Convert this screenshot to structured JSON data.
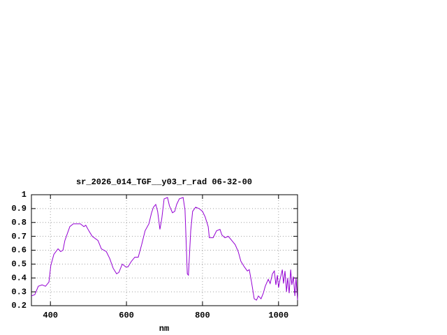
{
  "chart_data": {
    "type": "line",
    "title": "sr_2026_014_TGF__y03_r_rad 06-32-00",
    "x_label": "nm",
    "x": [
      350,
      359,
      368,
      378,
      387,
      396,
      401,
      409,
      420,
      427,
      433,
      438,
      451,
      460,
      479,
      488,
      493,
      501,
      510,
      525,
      534,
      547,
      556,
      565,
      574,
      580,
      589,
      598,
      604,
      613,
      622,
      631,
      640,
      649,
      659,
      666,
      671,
      677,
      682,
      688,
      693,
      699,
      708,
      713,
      721,
      727,
      732,
      739,
      749,
      754,
      760,
      763,
      769,
      774,
      782,
      791,
      800,
      807,
      815,
      818,
      828,
      837,
      846,
      851,
      859,
      868,
      877,
      886,
      894,
      901,
      910,
      918,
      923,
      929,
      936,
      942,
      947,
      954,
      960,
      965,
      973,
      978,
      984,
      989,
      993,
      997,
      1000,
      1004,
      1010,
      1013,
      1017,
      1021,
      1024,
      1028,
      1032,
      1035,
      1039,
      1043,
      1046,
      1050
    ],
    "series": [
      {
        "name": "sr_2026_014_TGF__y03_r_rad 06-32-00",
        "color": "#9400d3",
        "values": [
          0.27,
          0.28,
          0.34,
          0.35,
          0.34,
          0.37,
          0.49,
          0.57,
          0.61,
          0.59,
          0.6,
          0.67,
          0.77,
          0.79,
          0.79,
          0.77,
          0.78,
          0.74,
          0.7,
          0.67,
          0.61,
          0.59,
          0.54,
          0.47,
          0.43,
          0.44,
          0.5,
          0.48,
          0.48,
          0.52,
          0.55,
          0.55,
          0.64,
          0.74,
          0.79,
          0.87,
          0.91,
          0.93,
          0.88,
          0.75,
          0.83,
          0.97,
          0.98,
          0.92,
          0.87,
          0.88,
          0.93,
          0.97,
          0.98,
          0.89,
          0.43,
          0.42,
          0.74,
          0.88,
          0.91,
          0.9,
          0.88,
          0.84,
          0.77,
          0.69,
          0.69,
          0.74,
          0.75,
          0.71,
          0.69,
          0.7,
          0.67,
          0.64,
          0.59,
          0.52,
          0.48,
          0.45,
          0.46,
          0.37,
          0.25,
          0.24,
          0.27,
          0.25,
          0.29,
          0.34,
          0.39,
          0.36,
          0.43,
          0.45,
          0.35,
          0.42,
          0.33,
          0.39,
          0.46,
          0.36,
          0.45,
          0.3,
          0.4,
          0.29,
          0.46,
          0.35,
          0.41,
          0.27,
          0.4,
          0.24
        ]
      }
    ],
    "xlim": [
      350,
      1050
    ],
    "ylim": [
      0.2,
      1
    ],
    "xticks": [
      400,
      600,
      800,
      1000
    ],
    "yticks": [
      0.2,
      0.3,
      0.4,
      0.5,
      0.6,
      0.7,
      0.8,
      0.9,
      1
    ],
    "grid": true
  }
}
